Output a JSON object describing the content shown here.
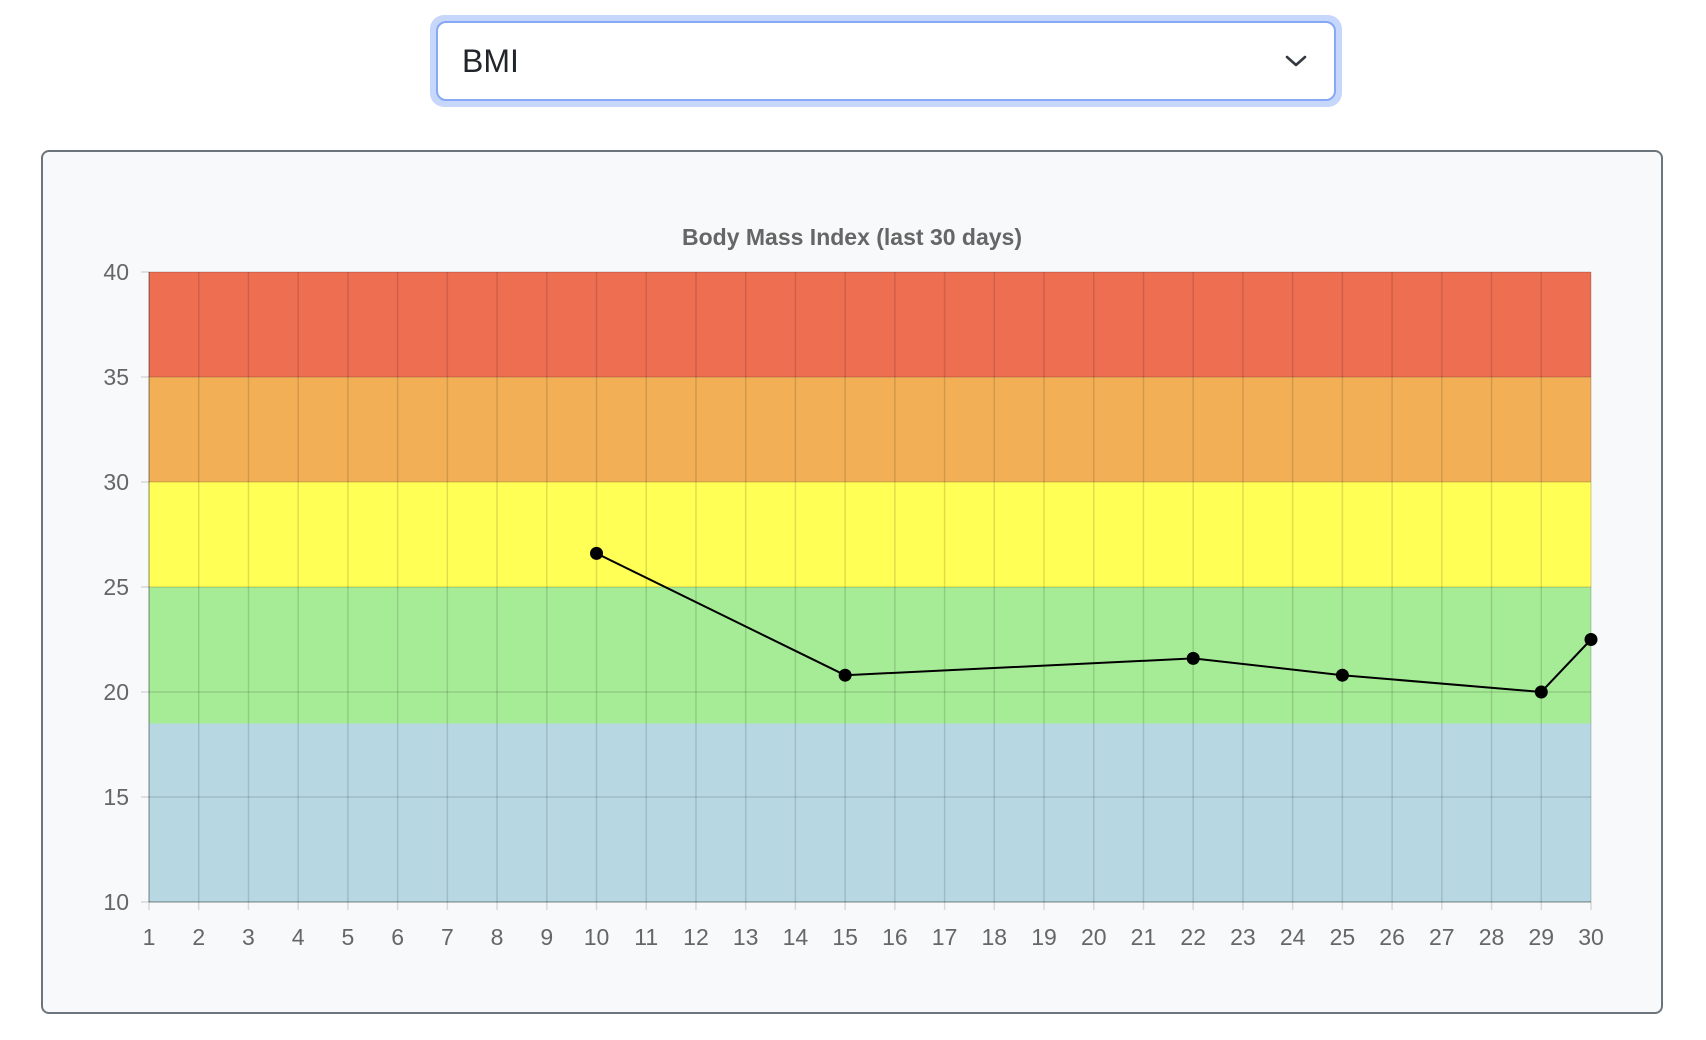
{
  "dropdown": {
    "selected": "BMI",
    "icon": "chevron-down-icon"
  },
  "chart_data": {
    "type": "line",
    "title": "Body Mass Index (last 30 days)",
    "xlabel": "",
    "ylabel": "",
    "x_ticks": [
      1,
      2,
      3,
      4,
      5,
      6,
      7,
      8,
      9,
      10,
      11,
      12,
      13,
      14,
      15,
      16,
      17,
      18,
      19,
      20,
      21,
      22,
      23,
      24,
      25,
      26,
      27,
      28,
      29,
      30
    ],
    "y_ticks": [
      10,
      15,
      20,
      25,
      30,
      35,
      40
    ],
    "xlim": [
      1,
      30
    ],
    "ylim": [
      10,
      40
    ],
    "grid": true,
    "legend": "none",
    "series": [
      {
        "points": [
          {
            "x": 10,
            "y": 26.6
          },
          {
            "x": 15,
            "y": 20.8
          },
          {
            "x": 22,
            "y": 21.6
          },
          {
            "x": 25,
            "y": 20.8
          },
          {
            "x": 29,
            "y": 20.0
          },
          {
            "x": 30,
            "y": 22.5
          }
        ],
        "color": "#000000"
      }
    ],
    "bands": [
      {
        "from": 10,
        "to": 18.5,
        "color": "#b7d8e2"
      },
      {
        "from": 18.5,
        "to": 25,
        "color": "#a6ec96"
      },
      {
        "from": 25,
        "to": 30,
        "color": "#ffff55"
      },
      {
        "from": 30,
        "to": 35,
        "color": "#f2af56"
      },
      {
        "from": 35,
        "to": 40,
        "color": "#ee6e52"
      }
    ]
  }
}
